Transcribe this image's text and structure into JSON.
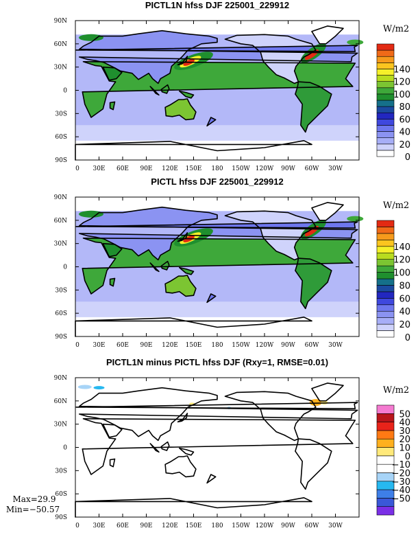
{
  "chart_data": [
    {
      "type": "heatmap",
      "title": "PICTL1N hfss DJF 225001_229912",
      "xlabel": "",
      "ylabel": "",
      "x_ticks": [
        "0",
        "30E",
        "60E",
        "90E",
        "120E",
        "150E",
        "180",
        "150W",
        "120W",
        "90W",
        "60W",
        "30W"
      ],
      "y_ticks": [
        "90N",
        "60N",
        "30N",
        "0",
        "30S",
        "60S",
        "90S"
      ],
      "colorbar": {
        "unit": "W/m2",
        "tick_labels": [
          "140",
          "120",
          "100",
          "80",
          "60",
          "40",
          "20",
          "0"
        ],
        "colors": [
          "#ffffff",
          "#cfd3fb",
          "#a7aef7",
          "#8b93f2",
          "#6e77ee",
          "#3f48de",
          "#2227c0",
          "#1b4aa0",
          "#15708a",
          "#1f8f2e",
          "#3ea83a",
          "#7cc532",
          "#b8dc1f",
          "#f5f02a",
          "#fbc51f",
          "#f69a1c",
          "#f06a18",
          "#e32a13"
        ]
      },
      "stats": null
    },
    {
      "type": "heatmap",
      "title": "PICTL hfss DJF 225001_229912",
      "xlabel": "",
      "ylabel": "",
      "x_ticks": [
        "0",
        "30E",
        "60E",
        "90E",
        "120E",
        "150E",
        "180",
        "150W",
        "120W",
        "90W",
        "60W",
        "30W"
      ],
      "y_ticks": [
        "90N",
        "60N",
        "30N",
        "0",
        "30S",
        "60S",
        "90S"
      ],
      "colorbar": {
        "unit": "W/m2",
        "tick_labels": [
          "140",
          "120",
          "100",
          "80",
          "60",
          "40",
          "20",
          "0"
        ],
        "colors": [
          "#ffffff",
          "#cfd3fb",
          "#a7aef7",
          "#8b93f2",
          "#6e77ee",
          "#3f48de",
          "#2227c0",
          "#1b4aa0",
          "#15708a",
          "#1f8f2e",
          "#3ea83a",
          "#7cc532",
          "#b8dc1f",
          "#f5f02a",
          "#fbc51f",
          "#f69a1c",
          "#f06a18",
          "#e32a13"
        ]
      },
      "stats": null
    },
    {
      "type": "heatmap",
      "title": "PICTL1N minus PICTL hfss DJF (Rxy=1, RMSE=0.01)",
      "xlabel": "",
      "ylabel": "",
      "x_ticks": [
        "0",
        "30E",
        "60E",
        "90E",
        "120E",
        "150E",
        "180",
        "150W",
        "120W",
        "90W",
        "60W",
        "30W"
      ],
      "y_ticks": [
        "90N",
        "60N",
        "30N",
        "0",
        "30S",
        "60S",
        "90S"
      ],
      "colorbar": {
        "unit": "W/m2",
        "tick_labels": [
          "50",
          "40",
          "30",
          "20",
          "10",
          "0",
          "−10",
          "−20",
          "−30",
          "−40",
          "−50"
        ],
        "colors": [
          "#7a2fe6",
          "#3a58d8",
          "#3e7fe8",
          "#26b8f0",
          "#a7d4f7",
          "#ffffff",
          "#ffffff",
          "#ffe97a",
          "#ffb01e",
          "#ff7a14",
          "#e8231a",
          "#b8151b",
          "#f47ad0"
        ]
      },
      "stats": {
        "max": "Max=29.9",
        "min": "Min=−50.57"
      }
    }
  ]
}
